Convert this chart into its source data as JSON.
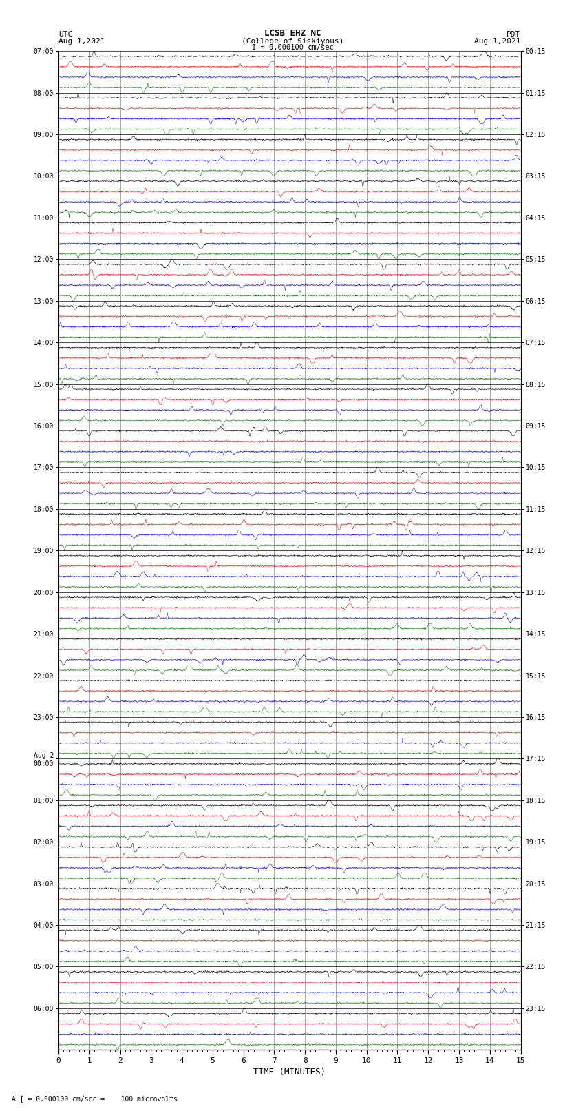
{
  "title_line1": "LCSB EHZ NC",
  "title_line2": "(College of Siskiyous)",
  "scale_label": "I = 0.000100 cm/sec",
  "left_header": "UTC",
  "left_date": "Aug 1,2021",
  "right_header": "PDT",
  "right_date": "Aug 1,2021",
  "bottom_label": "TIME (MINUTES)",
  "bottom_note": "A [ = 0.000100 cm/sec =    100 microvolts",
  "utc_times": [
    "07:00",
    "08:00",
    "09:00",
    "10:00",
    "11:00",
    "12:00",
    "13:00",
    "14:00",
    "15:00",
    "16:00",
    "17:00",
    "18:00",
    "19:00",
    "20:00",
    "21:00",
    "22:00",
    "23:00",
    "Aug 2\n00:00",
    "01:00",
    "02:00",
    "03:00",
    "04:00",
    "05:00",
    "06:00"
  ],
  "pdt_times": [
    "00:15",
    "01:15",
    "02:15",
    "03:15",
    "04:15",
    "05:15",
    "06:15",
    "07:15",
    "08:15",
    "09:15",
    "10:15",
    "11:15",
    "12:15",
    "13:15",
    "14:15",
    "15:15",
    "16:15",
    "17:15",
    "18:15",
    "19:15",
    "20:15",
    "21:15",
    "22:15",
    "23:15"
  ],
  "trace_colors": [
    "black",
    "red",
    "blue",
    "green"
  ],
  "n_rows": 24,
  "traces_per_row": 4,
  "minutes": 15,
  "samples_per_minute": 200,
  "background_color": "white",
  "fig_width": 8.5,
  "fig_height": 16.13,
  "dpi": 100,
  "amp_scale": 0.28,
  "linewidth": 0.35
}
